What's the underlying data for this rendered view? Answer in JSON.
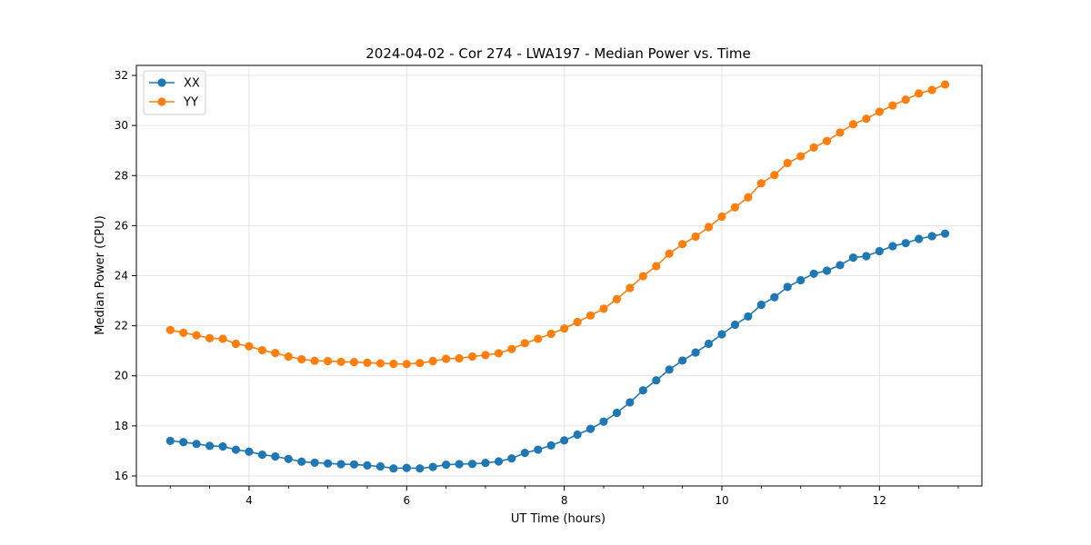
{
  "chart_data": {
    "type": "line",
    "title": "2024-04-02 - Cor 274 - LWA197 - Median Power vs. Time",
    "xlabel": "UT Time (hours)",
    "ylabel": "Median Power (CPU)",
    "xlim": [
      2.57,
      13.3
    ],
    "ylim": [
      15.6,
      32.4
    ],
    "x_ticks": [
      4,
      6,
      8,
      10,
      12
    ],
    "x_tick_labels": [
      "4",
      "6",
      "8",
      "10",
      "12"
    ],
    "y_ticks": [
      16,
      18,
      20,
      22,
      24,
      26,
      28,
      30,
      32
    ],
    "y_tick_labels": [
      "16",
      "18",
      "20",
      "22",
      "24",
      "26",
      "28",
      "30",
      "32"
    ],
    "grid": true,
    "legend_position": "top-left",
    "x": [
      3.0,
      3.167,
      3.333,
      3.5,
      3.667,
      3.833,
      4.0,
      4.167,
      4.333,
      4.5,
      4.667,
      4.833,
      5.0,
      5.167,
      5.333,
      5.5,
      5.667,
      5.833,
      6.0,
      6.167,
      6.333,
      6.5,
      6.667,
      6.833,
      7.0,
      7.167,
      7.333,
      7.5,
      7.667,
      7.833,
      8.0,
      8.167,
      8.333,
      8.5,
      8.667,
      8.833,
      9.0,
      9.167,
      9.333,
      9.5,
      9.667,
      9.833,
      10.0,
      10.167,
      10.333,
      10.5,
      10.667,
      10.833,
      11.0,
      11.167,
      11.333,
      11.5,
      11.667,
      11.833,
      12.0,
      12.167,
      12.333,
      12.5,
      12.667,
      12.833
    ],
    "series": [
      {
        "name": "XX",
        "color": "#1f77b4",
        "values": [
          17.4,
          17.35,
          17.28,
          17.2,
          17.18,
          17.05,
          16.97,
          16.85,
          16.78,
          16.68,
          16.57,
          16.53,
          16.5,
          16.47,
          16.46,
          16.42,
          16.38,
          16.3,
          16.32,
          16.3,
          16.36,
          16.45,
          16.47,
          16.48,
          16.52,
          16.58,
          16.7,
          16.92,
          17.05,
          17.22,
          17.42,
          17.65,
          17.88,
          18.17,
          18.52,
          18.94,
          19.42,
          19.82,
          20.25,
          20.61,
          20.93,
          21.28,
          21.66,
          22.04,
          22.37,
          22.84,
          23.14,
          23.55,
          23.82,
          24.08,
          24.2,
          24.42,
          24.72,
          24.78,
          24.98,
          25.18,
          25.3,
          25.47,
          25.58,
          25.68
        ]
      },
      {
        "name": "YY",
        "color": "#ff7f0e",
        "values": [
          21.83,
          21.72,
          21.62,
          21.5,
          21.48,
          21.28,
          21.18,
          21.02,
          20.91,
          20.77,
          20.66,
          20.6,
          20.59,
          20.56,
          20.55,
          20.52,
          20.5,
          20.48,
          20.47,
          20.51,
          20.59,
          20.68,
          20.7,
          20.77,
          20.83,
          20.9,
          21.07,
          21.3,
          21.48,
          21.68,
          21.89,
          22.15,
          22.41,
          22.68,
          23.06,
          23.51,
          23.98,
          24.38,
          24.88,
          25.26,
          25.56,
          25.94,
          26.36,
          26.73,
          27.13,
          27.69,
          28.02,
          28.5,
          28.77,
          29.12,
          29.38,
          29.72,
          30.05,
          30.27,
          30.55,
          30.8,
          31.03,
          31.28,
          31.42,
          31.64
        ]
      }
    ]
  }
}
